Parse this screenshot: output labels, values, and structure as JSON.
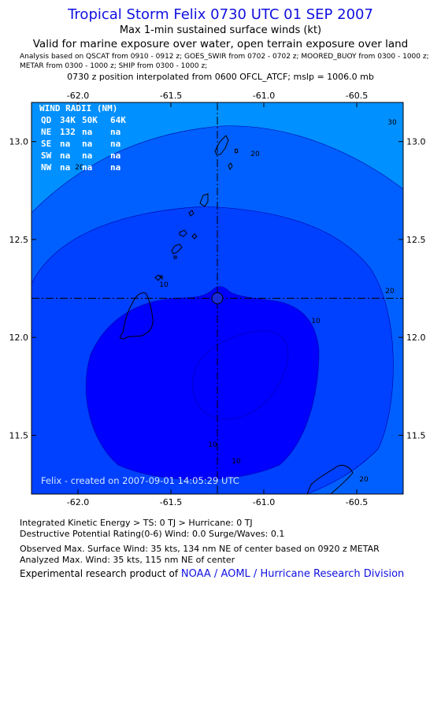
{
  "header": {
    "title": "Tropical Storm Felix 0730 UTC 01 SEP 2007",
    "subtitle": "Max 1-min sustained surface winds (kt)",
    "valid_line": "Valid for marine exposure over water, open terrain exposure over land",
    "analysis_line1": "Analysis based on  QSCAT from 0910 - 0912 z;  GOES_SWIR from 0702 - 0702 z;  MOORED_BUOY from 0300 - 1000 z;",
    "analysis_line2": "METAR from 0300 - 1000 z;  SHIP from 0300 - 1000 z;",
    "position_line": "0730 z position interpolated from 0600 OFCL_ATCF; mslp = 1006.0 mb"
  },
  "map": {
    "lon_range": [
      -62.25,
      -60.25
    ],
    "lat_range": [
      11.2,
      13.2
    ],
    "x_ticks": [
      "-62.0",
      "-61.5",
      "-61.0",
      "-60.5"
    ],
    "y_ticks": [
      "13.0",
      "12.5",
      "12.0",
      "11.5"
    ],
    "center": {
      "lon": -61.25,
      "lat": 12.2
    },
    "contour_labels": [
      "10",
      "10",
      "10",
      "10",
      "20",
      "20",
      "20",
      "20",
      "30"
    ],
    "colors": {
      "level_lt10": "#0000ff",
      "level_10_20": "#0040ff",
      "level_20_30": "#0060ff",
      "level_gt30": "#0090ff",
      "crosshair": "#000000"
    },
    "credit": "Felix - created on 2007-09-01 14:05:29 UTC"
  },
  "wind_radii": {
    "title": "WIND RADII (NM)",
    "headers": [
      "QD",
      "34K",
      "50K",
      "64K"
    ],
    "rows": [
      [
        "NE",
        "132",
        "na",
        "na"
      ],
      [
        "SE",
        "na",
        "na",
        "na"
      ],
      [
        "SW",
        "na",
        "na",
        "na"
      ],
      [
        "NW",
        "na",
        "na",
        "na"
      ]
    ]
  },
  "footer": {
    "ike": "Integrated Kinetic Energy > TS: 0 TJ   > Hurricane: 0 TJ",
    "dpr": "Destructive Potential Rating(0-6)  Wind: 0.0 Surge/Waves: 0.1",
    "observed": "Observed Max. Surface Wind: 35 kts, 134 nm NE of center based on 0920 z METAR",
    "analyzed": "Analyzed Max. Wind: 35 kts, 115 nm NE of center",
    "credit_prefix": "Experimental research product of ",
    "credit_link": "NOAA / AOML / Hurricane Research Division"
  }
}
